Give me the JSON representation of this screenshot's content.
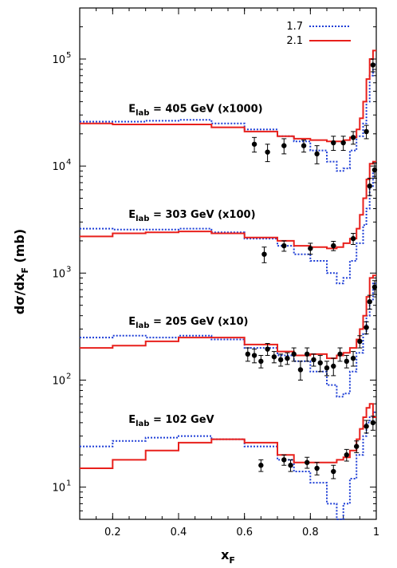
{
  "chart_data": {
    "type": "line",
    "xlabel": "x",
    "xlabel_sub": "F",
    "ylabel_parts": [
      "dσ/dx",
      "F",
      "  (mb)"
    ],
    "xlim": [
      0.1,
      1.0
    ],
    "ylim": [
      5,
      300000
    ],
    "yscale": "log",
    "grid": false,
    "legend_position": "top-right",
    "x_ticks": [
      0.2,
      0.4,
      0.6,
      0.8,
      1.0
    ],
    "x_tick_labels": [
      "0.2",
      "0.4",
      "0.6",
      "0.8",
      "1"
    ],
    "y_ticks": [
      10,
      100,
      1000,
      10000,
      100000
    ],
    "y_tick_exponents": [
      "1",
      "2",
      "3",
      "4",
      "5"
    ],
    "y_tick_base": "10",
    "legend": [
      {
        "label": "1.7",
        "color": "#1f3fd6",
        "dash": "dotted"
      },
      {
        "label": "2.1",
        "color": "#e8201c",
        "dash": "solid"
      }
    ],
    "panels": [
      {
        "label_main": "E",
        "label_sub": "lab",
        "label_rest": " = 405 GeV (x1000)",
        "anchor": [
          0.34,
          32000
        ],
        "series_17": [
          [
            0.1,
            26000
          ],
          [
            0.2,
            26000
          ],
          [
            0.3,
            26500
          ],
          [
            0.4,
            27000
          ],
          [
            0.5,
            25000
          ],
          [
            0.6,
            22000
          ],
          [
            0.7,
            19000
          ],
          [
            0.75,
            17000
          ],
          [
            0.8,
            14000
          ],
          [
            0.85,
            11000
          ],
          [
            0.88,
            9000
          ],
          [
            0.9,
            9500
          ],
          [
            0.92,
            14000
          ],
          [
            0.94,
            19000
          ],
          [
            0.96,
            25000
          ],
          [
            0.97,
            40000
          ],
          [
            0.98,
            70000
          ],
          [
            0.99,
            90000
          ],
          [
            1.0,
            90000
          ]
        ],
        "series_21": [
          [
            0.1,
            25000
          ],
          [
            0.2,
            24500
          ],
          [
            0.3,
            24500
          ],
          [
            0.4,
            24500
          ],
          [
            0.5,
            23000
          ],
          [
            0.6,
            21000
          ],
          [
            0.7,
            19000
          ],
          [
            0.75,
            18000
          ],
          [
            0.8,
            17500
          ],
          [
            0.85,
            17000
          ],
          [
            0.88,
            17000
          ],
          [
            0.9,
            17500
          ],
          [
            0.92,
            18500
          ],
          [
            0.94,
            22000
          ],
          [
            0.95,
            28000
          ],
          [
            0.96,
            40000
          ],
          [
            0.97,
            65000
          ],
          [
            0.98,
            100000
          ],
          [
            0.99,
            120000
          ],
          [
            1.0,
            120000
          ]
        ],
        "points": [
          [
            0.63,
            16000,
            2500
          ],
          [
            0.67,
            13500,
            2500
          ],
          [
            0.72,
            15500,
            2500
          ],
          [
            0.78,
            15500,
            2000
          ],
          [
            0.82,
            13000,
            2500
          ],
          [
            0.87,
            16500,
            2500
          ],
          [
            0.9,
            16500,
            2500
          ],
          [
            0.93,
            18500,
            2500
          ],
          [
            0.97,
            21000,
            3000
          ],
          [
            0.99,
            88000,
            12000
          ]
        ]
      },
      {
        "label_main": "E",
        "label_sub": "lab",
        "label_rest": " = 303 GeV (x100)",
        "anchor": [
          0.34,
          3300
        ],
        "series_17": [
          [
            0.1,
            2600
          ],
          [
            0.2,
            2550
          ],
          [
            0.3,
            2550
          ],
          [
            0.4,
            2600
          ],
          [
            0.5,
            2400
          ],
          [
            0.6,
            2100
          ],
          [
            0.7,
            1800
          ],
          [
            0.75,
            1500
          ],
          [
            0.8,
            1300
          ],
          [
            0.85,
            1000
          ],
          [
            0.88,
            800
          ],
          [
            0.9,
            900
          ],
          [
            0.92,
            1300
          ],
          [
            0.94,
            1900
          ],
          [
            0.96,
            2800
          ],
          [
            0.97,
            4000
          ],
          [
            0.98,
            6500
          ],
          [
            0.99,
            9000
          ],
          [
            1.0,
            9000
          ]
        ],
        "series_21": [
          [
            0.1,
            2200
          ],
          [
            0.2,
            2350
          ],
          [
            0.3,
            2400
          ],
          [
            0.4,
            2450
          ],
          [
            0.5,
            2350
          ],
          [
            0.6,
            2150
          ],
          [
            0.7,
            2000
          ],
          [
            0.75,
            1800
          ],
          [
            0.8,
            1750
          ],
          [
            0.85,
            1700
          ],
          [
            0.88,
            1750
          ],
          [
            0.9,
            1900
          ],
          [
            0.92,
            2100
          ],
          [
            0.94,
            2600
          ],
          [
            0.95,
            3500
          ],
          [
            0.96,
            5000
          ],
          [
            0.97,
            7500
          ],
          [
            0.98,
            10500
          ],
          [
            0.99,
            11000
          ],
          [
            1.0,
            11000
          ]
        ],
        "points": [
          [
            0.66,
            1500,
            250
          ],
          [
            0.72,
            1800,
            200
          ],
          [
            0.8,
            1700,
            200
          ],
          [
            0.87,
            1800,
            180
          ],
          [
            0.93,
            2100,
            250
          ],
          [
            0.98,
            6500,
            1200
          ],
          [
            0.995,
            9200,
            1500
          ]
        ]
      },
      {
        "label_main": "E",
        "label_sub": "lab",
        "label_rest": " = 205 GeV (x10)",
        "anchor": [
          0.34,
          330
        ],
        "series_17": [
          [
            0.1,
            250
          ],
          [
            0.2,
            260
          ],
          [
            0.3,
            250
          ],
          [
            0.4,
            260
          ],
          [
            0.5,
            240
          ],
          [
            0.6,
            200
          ],
          [
            0.7,
            170
          ],
          [
            0.75,
            150
          ],
          [
            0.8,
            120
          ],
          [
            0.85,
            90
          ],
          [
            0.88,
            70
          ],
          [
            0.9,
            75
          ],
          [
            0.92,
            120
          ],
          [
            0.94,
            180
          ],
          [
            0.96,
            270
          ],
          [
            0.97,
            400
          ],
          [
            0.98,
            550
          ],
          [
            0.99,
            800
          ],
          [
            1.0,
            800
          ]
        ],
        "series_21": [
          [
            0.1,
            200
          ],
          [
            0.2,
            210
          ],
          [
            0.3,
            230
          ],
          [
            0.4,
            250
          ],
          [
            0.5,
            250
          ],
          [
            0.6,
            215
          ],
          [
            0.7,
            185
          ],
          [
            0.75,
            170
          ],
          [
            0.8,
            175
          ],
          [
            0.85,
            160
          ],
          [
            0.88,
            170
          ],
          [
            0.9,
            180
          ],
          [
            0.92,
            200
          ],
          [
            0.94,
            240
          ],
          [
            0.95,
            300
          ],
          [
            0.96,
            400
          ],
          [
            0.97,
            600
          ],
          [
            0.98,
            900
          ],
          [
            0.99,
            950
          ],
          [
            1.0,
            950
          ]
        ],
        "points": [
          [
            0.61,
            175,
            25
          ],
          [
            0.63,
            170,
            25
          ],
          [
            0.65,
            150,
            20
          ],
          [
            0.67,
            195,
            25
          ],
          [
            0.69,
            165,
            20
          ],
          [
            0.71,
            155,
            20
          ],
          [
            0.73,
            160,
            20
          ],
          [
            0.75,
            175,
            25
          ],
          [
            0.77,
            125,
            25
          ],
          [
            0.79,
            175,
            25
          ],
          [
            0.81,
            155,
            20
          ],
          [
            0.83,
            145,
            25
          ],
          [
            0.85,
            130,
            20
          ],
          [
            0.87,
            135,
            25
          ],
          [
            0.89,
            175,
            25
          ],
          [
            0.91,
            150,
            20
          ],
          [
            0.93,
            160,
            25
          ],
          [
            0.95,
            230,
            30
          ],
          [
            0.97,
            310,
            40
          ],
          [
            0.98,
            540,
            80
          ],
          [
            0.995,
            740,
            110
          ]
        ]
      },
      {
        "label_main": "E",
        "label_sub": "lab",
        "label_rest": " = 102 GeV",
        "anchor": [
          0.34,
          40
        ],
        "series_17": [
          [
            0.1,
            24
          ],
          [
            0.2,
            27
          ],
          [
            0.3,
            29
          ],
          [
            0.4,
            30
          ],
          [
            0.5,
            28
          ],
          [
            0.6,
            24
          ],
          [
            0.7,
            18
          ],
          [
            0.75,
            14
          ],
          [
            0.8,
            11
          ],
          [
            0.85,
            7
          ],
          [
            0.88,
            5
          ],
          [
            0.9,
            7
          ],
          [
            0.92,
            12
          ],
          [
            0.94,
            20
          ],
          [
            0.96,
            30
          ],
          [
            0.97,
            40
          ],
          [
            0.98,
            45
          ],
          [
            0.99,
            50
          ],
          [
            1.0,
            50
          ]
        ],
        "series_21": [
          [
            0.1,
            15
          ],
          [
            0.2,
            18
          ],
          [
            0.3,
            22
          ],
          [
            0.4,
            26
          ],
          [
            0.5,
            28
          ],
          [
            0.6,
            26
          ],
          [
            0.7,
            20
          ],
          [
            0.75,
            17
          ],
          [
            0.8,
            17
          ],
          [
            0.85,
            17
          ],
          [
            0.88,
            18
          ],
          [
            0.9,
            19
          ],
          [
            0.92,
            22
          ],
          [
            0.94,
            28
          ],
          [
            0.95,
            35
          ],
          [
            0.96,
            45
          ],
          [
            0.97,
            55
          ],
          [
            0.98,
            60
          ],
          [
            0.99,
            45
          ],
          [
            1.0,
            45
          ]
        ],
        "points": [
          [
            0.65,
            16,
            2
          ],
          [
            0.72,
            18,
            2
          ],
          [
            0.74,
            16,
            2
          ],
          [
            0.79,
            17,
            2
          ],
          [
            0.82,
            15,
            2
          ],
          [
            0.87,
            14,
            2
          ],
          [
            0.91,
            20,
            2.5
          ],
          [
            0.94,
            24,
            3
          ],
          [
            0.97,
            37,
            5
          ],
          [
            0.99,
            40,
            6
          ]
        ]
      }
    ]
  }
}
